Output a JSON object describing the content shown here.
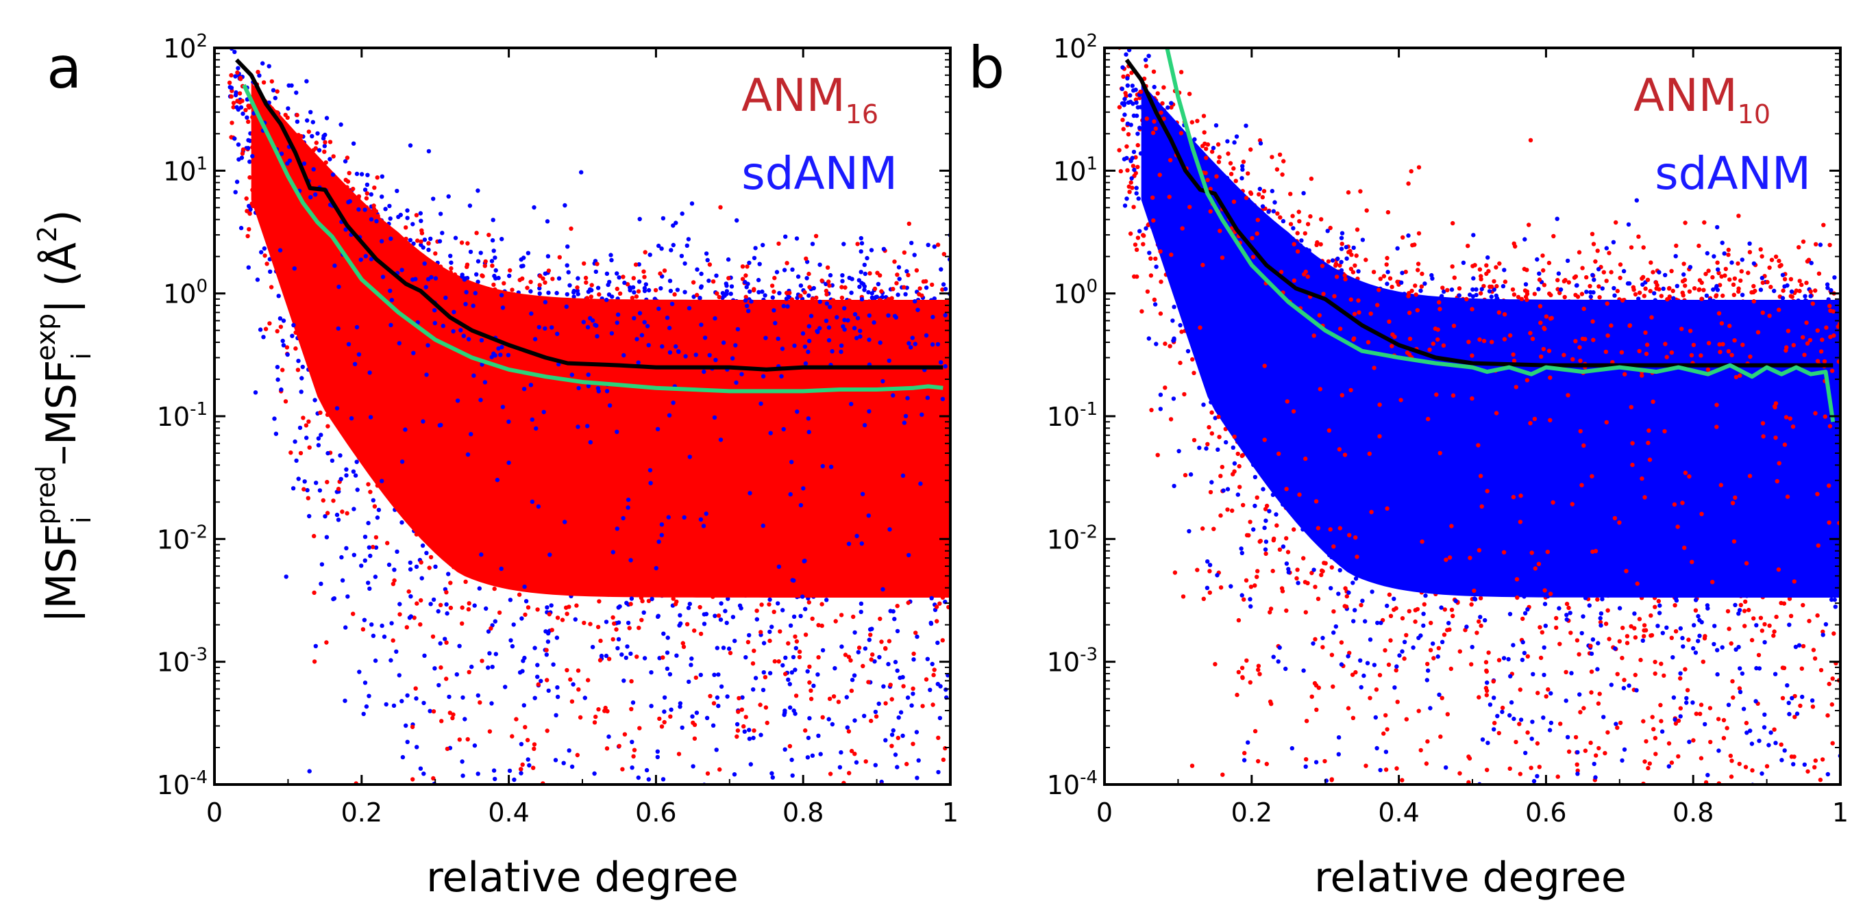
{
  "chart_data": [
    {
      "type": "scatter",
      "panel_label": "a",
      "xlabel": "relative degree",
      "ylabel": {
        "base1": "|MSF",
        "sub1": "i",
        "sup1": "pred",
        "mid": "–MSF",
        "sub2": "i",
        "sup2": "exp",
        "tail": "| (Å",
        "sup3": "2",
        "end": ")"
      },
      "xlim": [
        0,
        1
      ],
      "ylim": [
        0.0001,
        100
      ],
      "yscale": "log",
      "x_ticks": [
        "0",
        "0.2",
        "0.4",
        "0.6",
        "0.8",
        "1"
      ],
      "y_ticks": [
        {
          "base": "10",
          "exp": "2"
        },
        {
          "base": "10",
          "exp": "1"
        },
        {
          "base": "10",
          "exp": "0"
        },
        {
          "base": "10",
          "exp": "-1"
        },
        {
          "base": "10",
          "exp": "-2"
        },
        {
          "base": "10",
          "exp": "-3"
        },
        {
          "base": "10",
          "exp": "-4"
        }
      ],
      "legend": {
        "position": "top-right",
        "entries": [
          {
            "name": "ANM",
            "subscript": "16",
            "color": "#c1272d"
          },
          {
            "name": "sdANM",
            "subscript": "",
            "color": "#1a1aff"
          }
        ]
      },
      "front_cloud": "red",
      "series": [
        {
          "name": "ANM16 points",
          "color": "#ff0000",
          "kind": "scatter-cloud"
        },
        {
          "name": "sdANM points",
          "color": "#0000ff",
          "kind": "scatter-cloud"
        },
        {
          "name": "ANM16 median",
          "color": "#000000",
          "kind": "line",
          "x": [
            0.03,
            0.05,
            0.07,
            0.09,
            0.11,
            0.13,
            0.15,
            0.18,
            0.22,
            0.26,
            0.28,
            0.3,
            0.32,
            0.35,
            0.4,
            0.45,
            0.48,
            0.55,
            0.6,
            0.65,
            0.7,
            0.75,
            0.8,
            0.85,
            0.9,
            0.95,
            0.99
          ],
          "y": [
            80,
            60,
            35,
            24,
            14,
            7.2,
            7.0,
            3.6,
            1.9,
            1.2,
            1.05,
            0.82,
            0.64,
            0.5,
            0.38,
            0.3,
            0.27,
            0.26,
            0.25,
            0.25,
            0.25,
            0.24,
            0.25,
            0.25,
            0.25,
            0.25,
            0.25
          ]
        },
        {
          "name": "sdANM median",
          "color": "#2bd37a",
          "kind": "line",
          "x": [
            0.04,
            0.06,
            0.08,
            0.1,
            0.12,
            0.14,
            0.16,
            0.2,
            0.25,
            0.3,
            0.35,
            0.4,
            0.45,
            0.5,
            0.55,
            0.6,
            0.65,
            0.7,
            0.75,
            0.8,
            0.85,
            0.9,
            0.95,
            0.97,
            0.99
          ],
          "y": [
            50,
            28,
            16,
            9,
            5.5,
            3.8,
            2.9,
            1.3,
            0.7,
            0.42,
            0.3,
            0.24,
            0.21,
            0.19,
            0.18,
            0.17,
            0.165,
            0.16,
            0.16,
            0.16,
            0.165,
            0.165,
            0.17,
            0.175,
            0.17
          ]
        }
      ]
    },
    {
      "type": "scatter",
      "panel_label": "b",
      "xlabel": "relative degree",
      "xlim": [
        0,
        1
      ],
      "ylim": [
        0.0001,
        100
      ],
      "yscale": "log",
      "x_ticks": [
        "0",
        "0.2",
        "0.4",
        "0.6",
        "0.8",
        "1"
      ],
      "y_ticks": [
        {
          "base": "10",
          "exp": "2"
        },
        {
          "base": "10",
          "exp": "1"
        },
        {
          "base": "10",
          "exp": "0"
        },
        {
          "base": "10",
          "exp": "-1"
        },
        {
          "base": "10",
          "exp": "-2"
        },
        {
          "base": "10",
          "exp": "-3"
        },
        {
          "base": "10",
          "exp": "-4"
        }
      ],
      "legend": {
        "position": "top-right",
        "entries": [
          {
            "name": "ANM",
            "subscript": "10",
            "color": "#c1272d"
          },
          {
            "name": "sdANM",
            "subscript": "",
            "color": "#1a1aff"
          }
        ]
      },
      "front_cloud": "blue",
      "series": [
        {
          "name": "ANM10 points",
          "color": "#ff0000",
          "kind": "scatter-cloud"
        },
        {
          "name": "sdANM points",
          "color": "#0000ff",
          "kind": "scatter-cloud"
        },
        {
          "name": "ANM10 median",
          "color": "#000000",
          "kind": "line",
          "x": [
            0.03,
            0.05,
            0.07,
            0.09,
            0.11,
            0.13,
            0.15,
            0.18,
            0.22,
            0.26,
            0.3,
            0.35,
            0.4,
            0.45,
            0.5,
            0.6,
            0.7,
            0.8,
            0.9,
            0.95,
            0.99
          ],
          "y": [
            80,
            55,
            30,
            18,
            10,
            7,
            6.5,
            3.3,
            1.7,
            1.1,
            0.9,
            0.55,
            0.38,
            0.3,
            0.27,
            0.26,
            0.26,
            0.26,
            0.26,
            0.26,
            0.26
          ]
        },
        {
          "name": "sdANM median",
          "color": "#2bd37a",
          "kind": "line",
          "x": [
            0.085,
            0.1,
            0.12,
            0.14,
            0.16,
            0.2,
            0.25,
            0.3,
            0.35,
            0.4,
            0.45,
            0.5,
            0.52,
            0.55,
            0.58,
            0.6,
            0.65,
            0.7,
            0.75,
            0.78,
            0.82,
            0.85,
            0.88,
            0.9,
            0.92,
            0.94,
            0.96,
            0.98,
            0.99
          ],
          "y": [
            100,
            40,
            15,
            6.5,
            4,
            1.7,
            0.85,
            0.5,
            0.34,
            0.3,
            0.27,
            0.25,
            0.23,
            0.25,
            0.22,
            0.25,
            0.23,
            0.25,
            0.23,
            0.25,
            0.22,
            0.26,
            0.21,
            0.25,
            0.22,
            0.25,
            0.22,
            0.23,
            0.09
          ]
        }
      ]
    }
  ]
}
